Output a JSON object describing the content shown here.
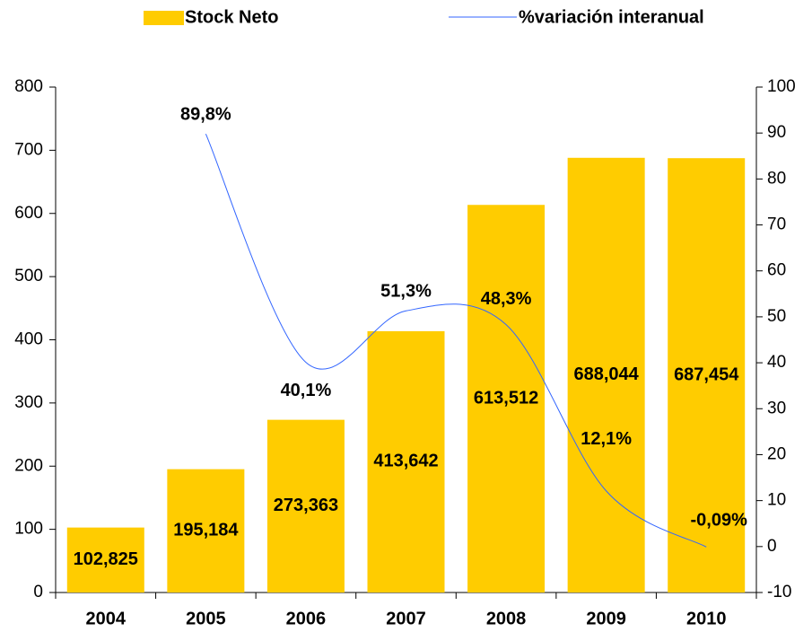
{
  "chart_data": {
    "type": "bar",
    "categories": [
      "2004",
      "2005",
      "2006",
      "2007",
      "2008",
      "2009",
      "2010"
    ],
    "series": [
      {
        "name": "Stock Neto",
        "type": "bar",
        "color": "#ffcc00",
        "values": [
          102.825,
          195.184,
          273.363,
          413.642,
          613.512,
          688.044,
          687.454
        ],
        "value_labels": [
          "102,825",
          "195,184",
          "273,363",
          "413,642",
          "613,512",
          "688,044",
          "687,454"
        ]
      },
      {
        "name": "%variación interanual",
        "type": "line",
        "color": "#3366ff",
        "axis": "y2",
        "values": [
          null,
          89.8,
          40.1,
          51.3,
          48.3,
          12.1,
          -0.09
        ],
        "value_labels": [
          null,
          "89,8%",
          "40,1%",
          "51,3%",
          "48,3%",
          "12,1%",
          "-0,09%"
        ]
      }
    ],
    "ylim": [
      0,
      800
    ],
    "yticks": [
      0,
      100,
      200,
      300,
      400,
      500,
      600,
      700,
      800
    ],
    "y2lim": [
      -10,
      100
    ],
    "y2ticks": [
      -10,
      0,
      10,
      20,
      30,
      40,
      50,
      60,
      70,
      80,
      90,
      100
    ],
    "legend": "top",
    "grid": false
  }
}
